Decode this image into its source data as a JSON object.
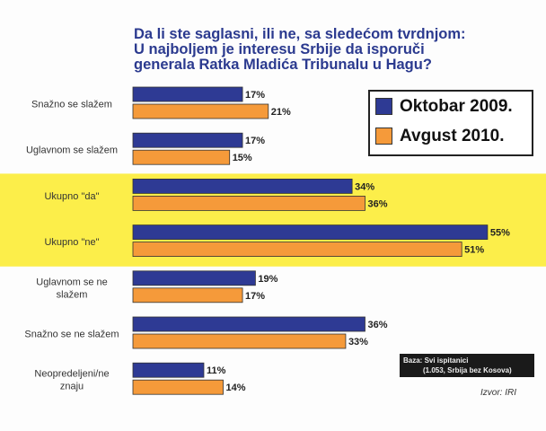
{
  "chart_data": {
    "type": "bar",
    "orientation": "horizontal",
    "title": [
      "Da li ste saglasni, ili ne, sa sledećom tvrdnjom:",
      "U najboljem je interesu Srbije da isporuči",
      "generala Ratka Mladića Tribunalu u Hagu?"
    ],
    "categories": [
      "Snažno se slažem",
      "Uglavnom se slažem",
      "Ukupno \"da\"",
      "Ukupno \"ne\"",
      "Uglavnom se ne slažem",
      "Snažno se ne slažem",
      "Neopredeljeni/ne znaju"
    ],
    "highlighted_categories": [
      "Ukupno \"da\"",
      "Ukupno \"ne\""
    ],
    "series": [
      {
        "name": "Oktobar 2009.",
        "color": "#2e3a94",
        "values": [
          17,
          17,
          34,
          55,
          19,
          36,
          11
        ]
      },
      {
        "name": "Avgust 2010.",
        "color": "#f59a3a",
        "values": [
          21,
          15,
          36,
          51,
          17,
          33,
          14
        ]
      }
    ],
    "value_suffix": "%",
    "xlim": [
      0,
      60
    ],
    "grid": false,
    "legend": "top-right",
    "highlight_color": "#fcee4a",
    "note": [
      "Baza: Svi ispitanici",
      "(1.053, Srbija bez Kosova)"
    ],
    "source": "Izvor: IRI"
  }
}
